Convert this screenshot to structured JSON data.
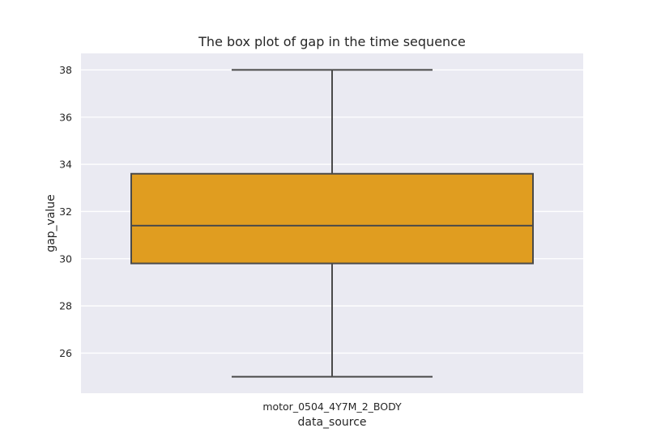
{
  "chart_data": {
    "type": "box",
    "title": "The box plot of gap in the time sequence",
    "xlabel": "data_source",
    "ylabel": "gap_value",
    "categories": [
      "motor_0504_4Y7M_2_BODY"
    ],
    "boxes": [
      {
        "category": "motor_0504_4Y7M_2_BODY",
        "whisker_low": 25.0,
        "q1": 29.8,
        "median": 31.4,
        "q3": 33.6,
        "whisker_high": 38.0
      }
    ],
    "ylim": [
      24.3,
      38.7
    ],
    "yticks": [
      26,
      28,
      30,
      32,
      34,
      36,
      38
    ],
    "grid": true,
    "colors": {
      "box_fill": "#e09d20",
      "box_edge": "#4a4a4a",
      "plot_background": "#eaeaf2",
      "grid": "#ffffff"
    }
  }
}
